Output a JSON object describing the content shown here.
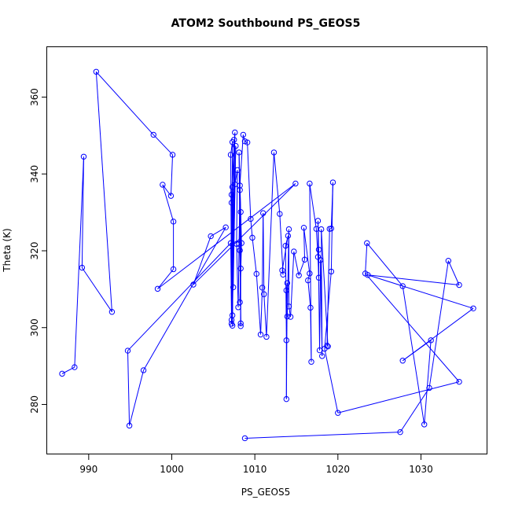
{
  "chart_data": {
    "type": "line",
    "title": "ATOM2 Southbound PS_GEOS5",
    "xlabel": "PS_GEOS5",
    "ylabel": "Theta (K)",
    "xlim": [
      985,
      1038
    ],
    "ylim": [
      267,
      373
    ],
    "x_ticks": [
      990,
      1000,
      1010,
      1020,
      1030
    ],
    "y_ticks": [
      280,
      300,
      320,
      340,
      360
    ],
    "marker": "open-circle",
    "line_color": "#0000ff",
    "grid": false,
    "series": [
      {
        "points": [
          [
            986.8,
            288.0
          ],
          [
            988.3,
            289.7
          ],
          [
            989.4,
            344.5
          ],
          [
            989.2,
            315.6
          ],
          [
            992.8,
            304.1
          ],
          [
            990.9,
            366.6
          ],
          [
            997.8,
            350.2
          ],
          [
            1000.1,
            345.0
          ],
          [
            999.9,
            334.3
          ],
          [
            998.9,
            337.2
          ],
          [
            1000.2,
            327.6
          ],
          [
            1000.2,
            315.2
          ],
          [
            998.3,
            310.1
          ],
          [
            1014.9,
            337.5
          ],
          [
            1002.6,
            311.2
          ],
          [
            1004.7,
            323.8
          ],
          [
            1006.5,
            326.1
          ],
          [
            996.6,
            288.9
          ],
          [
            994.9,
            274.5
          ],
          [
            994.7,
            294.0
          ],
          [
            1007.1,
            322.0
          ],
          [
            1007.2,
            301.0
          ],
          [
            1007.1,
            345.0
          ],
          [
            1007.3,
            348.3
          ],
          [
            1007.2,
            302.0
          ],
          [
            1007.5,
            348.9
          ],
          [
            1007.3,
            300.5
          ],
          [
            1007.2,
            334.6
          ],
          [
            1007.6,
            350.8
          ],
          [
            1007.3,
            303.2
          ],
          [
            1007.7,
            347.3
          ],
          [
            1007.4,
            310.5
          ],
          [
            1007.3,
            336.6
          ],
          [
            1007.2,
            332.5
          ],
          [
            1007.6,
            337.3
          ],
          [
            1007.9,
            341.0
          ],
          [
            1007.8,
            321.8
          ],
          [
            1008.0,
            305.3
          ],
          [
            1008.1,
            321.8
          ],
          [
            1008.2,
            335.8
          ],
          [
            1008.3,
            301.1
          ],
          [
            1008.1,
            345.6
          ],
          [
            1008.3,
            330.1
          ],
          [
            1008.3,
            300.4
          ],
          [
            1008.2,
            320.1
          ],
          [
            1008.3,
            315.4
          ],
          [
            1008.2,
            306.6
          ],
          [
            1008.4,
            322.0
          ],
          [
            1008.2,
            337.0
          ],
          [
            1008.6,
            350.2
          ],
          [
            1008.8,
            348.5
          ],
          [
            1009.1,
            348.2
          ],
          [
            1009.5,
            328.3
          ],
          [
            1009.7,
            323.4
          ],
          [
            1010.2,
            314.0
          ],
          [
            1010.7,
            298.2
          ],
          [
            1010.9,
            310.4
          ],
          [
            1011.0,
            329.8
          ],
          [
            1011.1,
            308.7
          ],
          [
            1011.4,
            297.6
          ],
          [
            1012.3,
            345.6
          ],
          [
            1013.0,
            329.6
          ],
          [
            1013.4,
            313.8
          ],
          [
            1013.3,
            314.9
          ],
          [
            1014.0,
            323.9
          ],
          [
            1013.7,
            321.3
          ],
          [
            1013.8,
            296.7
          ],
          [
            1013.8,
            281.4
          ],
          [
            1013.9,
            311.6
          ],
          [
            1013.8,
            309.7
          ],
          [
            1013.9,
            302.9
          ],
          [
            1014.1,
            325.6
          ],
          [
            1014.1,
            305.5
          ],
          [
            1014.3,
            302.8
          ],
          [
            1014.7,
            319.8
          ],
          [
            1015.3,
            313.6
          ],
          [
            1016.0,
            317.7
          ],
          [
            1015.9,
            326.0
          ],
          [
            1016.6,
            314.1
          ],
          [
            1016.4,
            312.3
          ],
          [
            1016.7,
            305.2
          ],
          [
            1016.8,
            291.1
          ],
          [
            1016.6,
            337.5
          ],
          [
            1017.4,
            325.7
          ],
          [
            1017.6,
            318.4
          ],
          [
            1017.7,
            313.0
          ],
          [
            1017.7,
            320.3
          ],
          [
            1017.6,
            327.8
          ],
          [
            1017.8,
            294.1
          ],
          [
            1017.9,
            317.6
          ],
          [
            1018.1,
            292.6
          ],
          [
            1018.0,
            325.6
          ],
          [
            1018.8,
            295.1
          ],
          [
            1018.7,
            295.3
          ],
          [
            1019.0,
            325.7
          ],
          [
            1019.2,
            325.8
          ],
          [
            1019.4,
            337.8
          ],
          [
            1019.2,
            314.6
          ],
          [
            1018.4,
            294.5
          ],
          [
            1020.0,
            277.8
          ],
          [
            1034.6,
            285.9
          ],
          [
            1023.3,
            314.1
          ],
          [
            1023.5,
            322.0
          ],
          [
            1027.8,
            310.8
          ],
          [
            1030.4,
            274.8
          ],
          [
            1031.2,
            296.7
          ],
          [
            1027.8,
            291.4
          ],
          [
            1036.3,
            305.0
          ],
          [
            1023.6,
            313.7
          ],
          [
            1034.6,
            311.1
          ],
          [
            1033.3,
            317.4
          ],
          [
            1031.0,
            284.3
          ],
          [
            1027.5,
            272.8
          ],
          [
            1008.8,
            271.2
          ]
        ]
      }
    ]
  }
}
